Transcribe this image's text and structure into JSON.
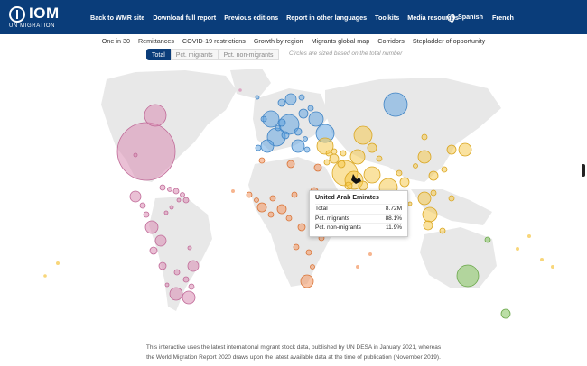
{
  "header": {
    "logo_text": "IOM",
    "logo_sub": "UN MIGRATION",
    "nav": [
      "Back to WMR site",
      "Download full report",
      "Previous editions",
      "Report in other languages",
      "Toolkits",
      "Media resources"
    ],
    "languages": [
      "Spanish",
      "French"
    ]
  },
  "subnav": [
    "One in 30",
    "Remittances",
    "COVID-19 restrictions",
    "Growth by region",
    "Migrants global map",
    "Corridors",
    "Stepladder of opportunity"
  ],
  "tabs": [
    "Total",
    "Pct. migrants",
    "Pct. non-migrants"
  ],
  "note": "Circles are sized based on the total number",
  "tooltip": {
    "title": "United Arab Emirates",
    "rows": [
      {
        "label": "Total",
        "value": "8.72M"
      },
      {
        "label": "Pct. migrants",
        "value": "88.1%"
      },
      {
        "label": "Pct. non-migrants",
        "value": "11.9%"
      }
    ]
  },
  "footer": {
    "line1": "This interactive uses the latest international migrant stock data, published by UN DESA in January 2021, whereas",
    "line2": "the World Migration Report 2020 draws upon the latest available data at the time of publication (November 2019)."
  },
  "colors": {
    "header_bg": "#0a3d7a",
    "americas": "#d98cb3",
    "europe": "#5aa0e0",
    "asia": "#f5c542",
    "africa": "#f29560",
    "oceania": "#8ec86a",
    "land": "#e8e8e8"
  },
  "icons": [
    "globe-icon",
    "iom-logo-icon"
  ]
}
